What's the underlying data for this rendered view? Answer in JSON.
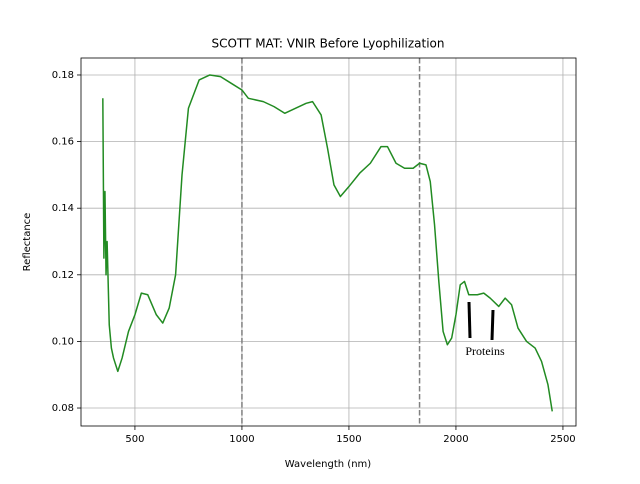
{
  "chart_data": {
    "type": "line",
    "title": "SCOTT MAT: VNIR Before Lyophilization",
    "x_label": "Wavelength (nm)",
    "y_label": "Reflectance",
    "annotation": "Proteins",
    "grid": true,
    "xlim": [
      248,
      2561
    ],
    "ylim": [
      0.0746,
      0.1851
    ],
    "xticks": [
      500,
      1000,
      1500,
      2000,
      2500
    ],
    "yticks": [
      0.08,
      {
        "value": 0.1,
        "label": "0.10"
      },
      0.12,
      0.14,
      0.16,
      0.18
    ],
    "vlines": [
      1000,
      1830
    ],
    "series": [
      {
        "color": "#228b22",
        "x": [
          350,
          355,
          360,
          365,
          370,
          380,
          390,
          400,
          420,
          440,
          470,
          500,
          530,
          560,
          600,
          630,
          660,
          690,
          720,
          750,
          800,
          850,
          900,
          950,
          1000,
          1030,
          1100,
          1150,
          1200,
          1250,
          1300,
          1330,
          1370,
          1400,
          1430,
          1460,
          1500,
          1550,
          1600,
          1650,
          1680,
          1720,
          1760,
          1800,
          1830,
          1860,
          1880,
          1900,
          1920,
          1940,
          1960,
          1980,
          2000,
          2020,
          2040,
          2060,
          2100,
          2130,
          2160,
          2200,
          2230,
          2260,
          2290,
          2330,
          2370,
          2400,
          2430,
          2450
        ],
        "values": [
          0.173,
          0.125,
          0.145,
          0.12,
          0.13,
          0.105,
          0.098,
          0.095,
          0.091,
          0.095,
          0.103,
          0.108,
          0.1145,
          0.114,
          0.108,
          0.1055,
          0.11,
          0.12,
          0.15,
          0.17,
          0.1785,
          0.18,
          0.1795,
          0.1775,
          0.1755,
          0.173,
          0.172,
          0.1705,
          0.1685,
          0.17,
          0.1715,
          0.172,
          0.168,
          0.158,
          0.147,
          0.1435,
          0.1465,
          0.1505,
          0.1535,
          0.1585,
          0.1585,
          0.1535,
          0.152,
          0.152,
          0.1535,
          0.153,
          0.148,
          0.135,
          0.118,
          0.103,
          0.099,
          0.101,
          0.108,
          0.117,
          0.118,
          0.114,
          0.114,
          0.1145,
          0.113,
          0.1105,
          0.113,
          0.111,
          0.104,
          0.1,
          0.098,
          0.094,
          0.087,
          0.079
        ]
      }
    ]
  }
}
